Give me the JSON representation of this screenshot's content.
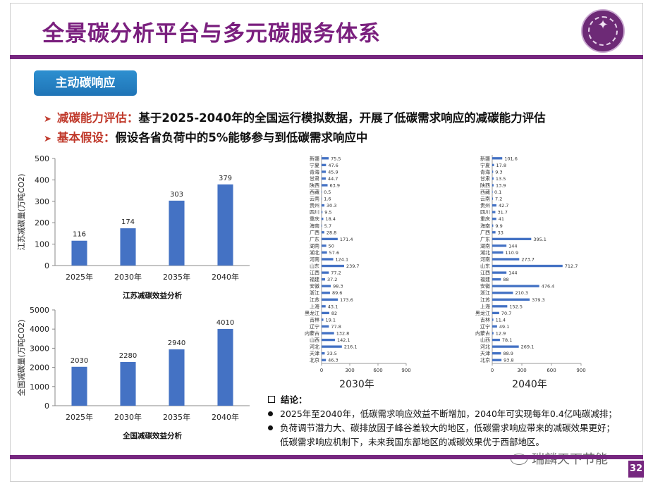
{
  "slide": {
    "title": "全景碳分析平台与多元碳服务体系",
    "badge": "主动碳响应",
    "bullets": [
      {
        "key": "减碳能力评估：",
        "text": "基于2025-2040年的全国运行模拟数据，开展了低碳需求响应的减碳能力评估"
      },
      {
        "key": "基本假设：",
        "text": "假设各省负荷中的5%能够参与到低碳需求响应中"
      }
    ],
    "conclusion": {
      "heading": "结论：",
      "items": [
        "2025年至2040年，低碳需求响应效益不断增加，2040年可实现每年0.4亿吨碳减排；",
        "负荷调节潜力大、碳排放因子峰谷差较大的地区，低碳需求响应带来的减碳效果更好；",
        "低碳需求响应机制下，未来我国东部地区的减碳效果优于西部地区。"
      ]
    },
    "page_number": "32",
    "watermark": "瑞麟天下节能",
    "colors": {
      "purple": "#76277f",
      "bar": "#4472c4",
      "accent_red": "#c0392b",
      "badge_blue": "#1f74b6"
    }
  },
  "chart_data": [
    {
      "type": "bar",
      "title": "江苏减碳效益分析",
      "ylabel": "江苏减碳量(万吨CO2)",
      "categories": [
        "2025年",
        "2030年",
        "2035年",
        "2040年"
      ],
      "values": [
        116,
        174,
        303,
        379
      ],
      "ylim": [
        0,
        500
      ],
      "yticks": [
        "0",
        "100",
        "200",
        "300",
        "400",
        "500"
      ],
      "grid": false
    },
    {
      "type": "bar",
      "title": "全国减碳效益分析",
      "ylabel": "全国减碳量(万吨CO2)",
      "categories": [
        "2025年",
        "2030年",
        "2035年",
        "2040年"
      ],
      "values": [
        2030,
        2280,
        2940,
        4010
      ],
      "ylim": [
        0,
        5000
      ],
      "yticks": [
        "0",
        "1000",
        "2000",
        "3000",
        "4000",
        "5000"
      ],
      "grid": false
    },
    {
      "type": "bar",
      "orientation": "horizontal",
      "title": "2030年",
      "categories": [
        "新疆",
        "宁夏",
        "青海",
        "甘肃",
        "陕西",
        "西藏",
        "云南",
        "贵州",
        "四川",
        "重庆",
        "海南",
        "广西",
        "广东",
        "湖南",
        "湖北",
        "河南",
        "山东",
        "江西",
        "福建",
        "安徽",
        "浙江",
        "江苏",
        "上海",
        "黑龙江",
        "吉林",
        "辽宁",
        "内蒙古",
        "山西",
        "河北",
        "天津",
        "北京"
      ],
      "values": [
        75.5,
        47.6,
        45.9,
        44.7,
        63.9,
        0.5,
        1.6,
        30.3,
        9.5,
        18.4,
        5.7,
        28.8,
        171.4,
        50.0,
        57.6,
        124.1,
        239.7,
        77.2,
        37.2,
        98.3,
        89.6,
        173.6,
        43.1,
        82.0,
        19.1,
        77.8,
        132.8,
        142.1,
        216.1,
        33.5,
        46.3
      ],
      "xlim": [
        0,
        900
      ],
      "xticks": [
        "0",
        "300",
        "600",
        "900"
      ]
    },
    {
      "type": "bar",
      "orientation": "horizontal",
      "title": "2040年",
      "categories": [
        "新疆",
        "宁夏",
        "青海",
        "甘肃",
        "陕西",
        "西藏",
        "云南",
        "贵州",
        "四川",
        "重庆",
        "海南",
        "广西",
        "广东",
        "湖南",
        "湖北",
        "河南",
        "山东",
        "江西",
        "福建",
        "安徽",
        "浙江",
        "江苏",
        "上海",
        "黑龙江",
        "吉林",
        "辽宁",
        "内蒙古",
        "山西",
        "河北",
        "天津",
        "北京"
      ],
      "values": [
        101.6,
        17.8,
        9.3,
        13.5,
        13.9,
        0.1,
        7.2,
        42.7,
        31.7,
        41.0,
        9.9,
        33.0,
        395.1,
        144.0,
        110.9,
        273.7,
        712.7,
        144.0,
        88.0,
        476.4,
        210.3,
        379.3,
        152.5,
        70.7,
        11.4,
        49.1,
        12.9,
        78.1,
        269.1,
        88.9,
        93.8
      ],
      "xlim": [
        0,
        900
      ],
      "xticks": [
        "0",
        "300",
        "600",
        "900"
      ]
    }
  ]
}
